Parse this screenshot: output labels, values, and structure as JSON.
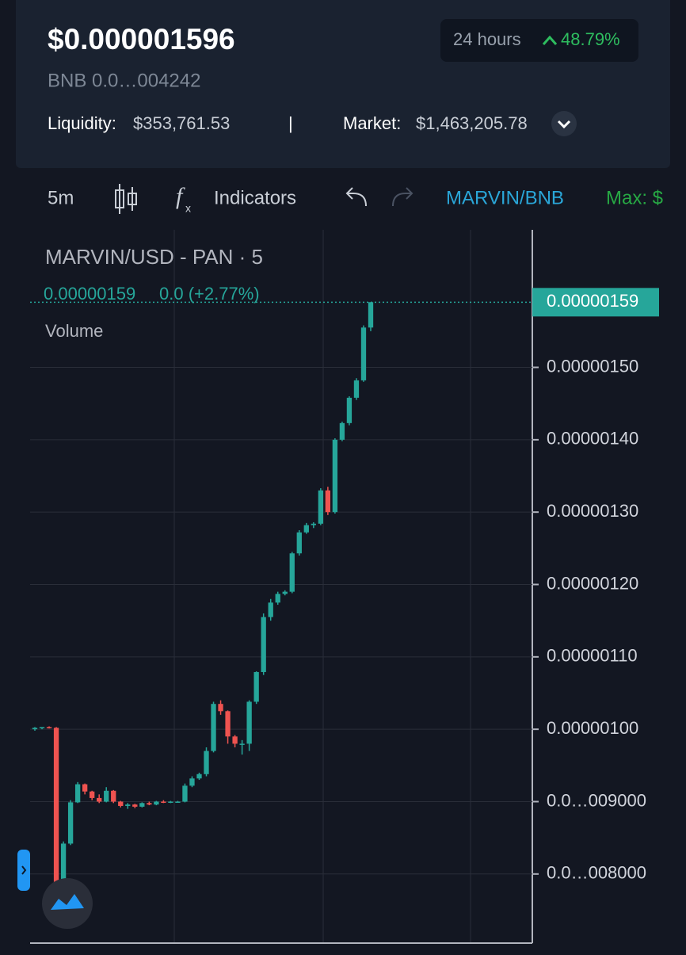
{
  "header": {
    "price": "$0.000001596",
    "pair_price": "BNB 0.0…004242",
    "period": "24 hours",
    "change": "48.79%",
    "liquidity_label": "Liquidity:",
    "liquidity": "$353,761.53",
    "separator": "|",
    "market_label": "Market:",
    "market": "$1,463,205.78"
  },
  "toolbar": {
    "interval": "5m",
    "indicators": "Indicators",
    "pair": "MARVIN/BNB",
    "max": "Max: $"
  },
  "chart_data": {
    "type": "candlestick",
    "title": "MARVIN/USD - PAN · 5",
    "legend_price": "0.00000159",
    "legend_change": "0.0 (+2.77%)",
    "volume_label": "Volume",
    "last_price": {
      "value": 1.59e-06,
      "label": "0.00000159"
    },
    "up_color": "#26a69a",
    "down_color": "#ef5350",
    "grid": true,
    "ylim": [
      7.1e-07,
      1.69e-06
    ],
    "yticks": [
      {
        "value": 8e-07,
        "label": "0.0…008000"
      },
      {
        "value": 9e-07,
        "label": "0.0…009000"
      },
      {
        "value": 1e-06,
        "label": "0.00000100"
      },
      {
        "value": 1.1e-06,
        "label": "0.00000110"
      },
      {
        "value": 1.2e-06,
        "label": "0.00000120"
      },
      {
        "value": 1.3e-06,
        "label": "0.00000130"
      },
      {
        "value": 1.4e-06,
        "label": "0.00000140"
      },
      {
        "value": 1.5e-06,
        "label": "0.00000150"
      }
    ],
    "candles": {
      "open": [
        1e-06,
        1.002e-06,
        1.003e-06,
        1.002e-06,
        7.85e-07,
        8.42e-07,
        8.99e-07,
        9.24e-07,
        9.14e-07,
        9.05e-07,
        9e-07,
        9.15e-07,
        9e-07,
        8.94e-07,
        8.96e-07,
        8.93e-07,
        8.98e-07,
        8.96e-07,
        9e-07,
        8.99e-07,
        9e-07,
        9e-07,
        9.22e-07,
        9.32e-07,
        9.38e-07,
        9.7e-07,
        1.035e-06,
        1.025e-06,
        9.9e-07,
        9.8e-07,
        9.8e-07,
        1.038e-06,
        1.079e-06,
        1.155e-06,
        1.175e-06,
        1.187e-06,
        1.19e-06,
        1.243e-06,
        1.272e-06,
        1.282e-06,
        1.284e-06,
        1.33e-06,
        1.3e-06,
        1.4e-06,
        1.423e-06,
        1.458e-06,
        1.482e-06,
        1.555e-06
      ],
      "high": [
        1.003e-06,
        1.003e-06,
        1.004e-06,
        1.003e-06,
        8.45e-07,
        9.02e-07,
        9.27e-07,
        9.25e-07,
        9.15e-07,
        9.1e-07,
        9.2e-07,
        9.16e-07,
        9.01e-07,
        8.98e-07,
        8.97e-07,
        8.99e-07,
        9e-07,
        9.01e-07,
        9.02e-07,
        9.01e-07,
        9.01e-07,
        9.25e-07,
        9.35e-07,
        9.4e-07,
        9.75e-07,
        1.038e-06,
        1.04e-06,
        1.026e-06,
        9.92e-07,
        9.85e-07,
        1.04e-06,
        1.08e-06,
        1.16e-06,
        1.18e-06,
        1.19e-06,
        1.192e-06,
        1.245e-06,
        1.275e-06,
        1.285e-06,
        1.286e-06,
        1.333e-06,
        1.335e-06,
        1.402e-06,
        1.425e-06,
        1.46e-06,
        1.485e-06,
        1.558e-06,
        1.59e-06
      ],
      "low": [
        9.98e-07,
        1e-06,
        1.001e-06,
        7.6e-07,
        7.6e-07,
        8.4e-07,
        8.98e-07,
        9.1e-07,
        9.02e-07,
        8.98e-07,
        8.99e-07,
        8.98e-07,
        8.92e-07,
        8.9e-07,
        8.91e-07,
        8.92e-07,
        8.95e-07,
        8.95e-07,
        8.98e-07,
        8.98e-07,
        8.99e-07,
        8.99e-07,
        9.2e-07,
        9.3e-07,
        9.35e-07,
        9.68e-07,
        1.02e-06,
        9.8e-07,
        9.75e-07,
        9.65e-07,
        9.7e-07,
        1.035e-06,
        1.075e-06,
        1.15e-06,
        1.172e-06,
        1.185e-06,
        1.188e-06,
        1.24e-06,
        1.27e-06,
        1.278e-06,
        1.282e-06,
        1.296e-06,
        1.298e-06,
        1.398e-06,
        1.42e-06,
        1.455e-06,
        1.48e-06,
        1.55e-06
      ],
      "close": [
        1.002e-06,
        1.003e-06,
        1.002e-06,
        7.85e-07,
        8.42e-07,
        8.99e-07,
        9.24e-07,
        9.14e-07,
        9.05e-07,
        9e-07,
        9.15e-07,
        9e-07,
        8.94e-07,
        8.96e-07,
        8.93e-07,
        8.98e-07,
        8.96e-07,
        9e-07,
        8.99e-07,
        9e-07,
        9e-07,
        9.22e-07,
        9.32e-07,
        9.38e-07,
        9.7e-07,
        1.035e-06,
        1.025e-06,
        9.9e-07,
        9.8e-07,
        9.8e-07,
        1.038e-06,
        1.079e-06,
        1.155e-06,
        1.175e-06,
        1.187e-06,
        1.19e-06,
        1.243e-06,
        1.272e-06,
        1.282e-06,
        1.284e-06,
        1.33e-06,
        1.3e-06,
        1.4e-06,
        1.423e-06,
        1.458e-06,
        1.482e-06,
        1.555e-06,
        1.59e-06
      ]
    }
  }
}
